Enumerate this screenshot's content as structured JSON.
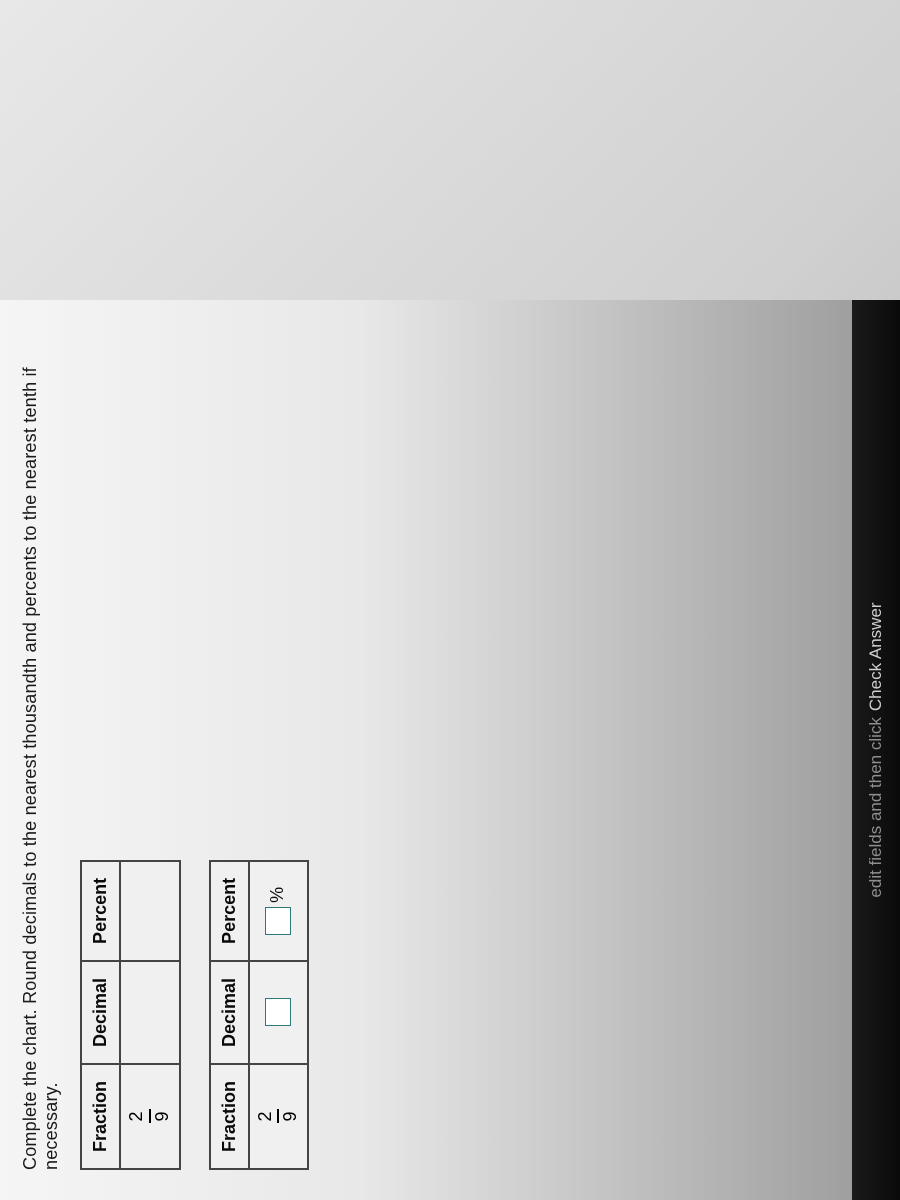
{
  "instructionText": "Complete the chart. Round decimals to the nearest thousandth and percents to the nearest tenth if necessary.",
  "table1": {
    "headers": {
      "col1": "Fraction",
      "col2": "Decimal",
      "col3": "Percent"
    },
    "row1": {
      "fraction": {
        "numerator": "2",
        "denominator": "9"
      }
    }
  },
  "table2": {
    "headers": {
      "col1": "Fraction",
      "col2": "Decimal",
      "col3": "Percent"
    },
    "row1": {
      "fraction": {
        "numerator": "2",
        "denominator": "9"
      },
      "percentSuffix": "%"
    }
  },
  "bottomBar": {
    "fadedPrefix": "edit fields and then click",
    "main": " Check Answer"
  },
  "colors": {
    "borderColor": "#444444",
    "inputBorder": "#2a7a7a",
    "textColor": "#1a1a1a",
    "barBg": "#0e0e0e",
    "barText": "#cfcfcf"
  }
}
